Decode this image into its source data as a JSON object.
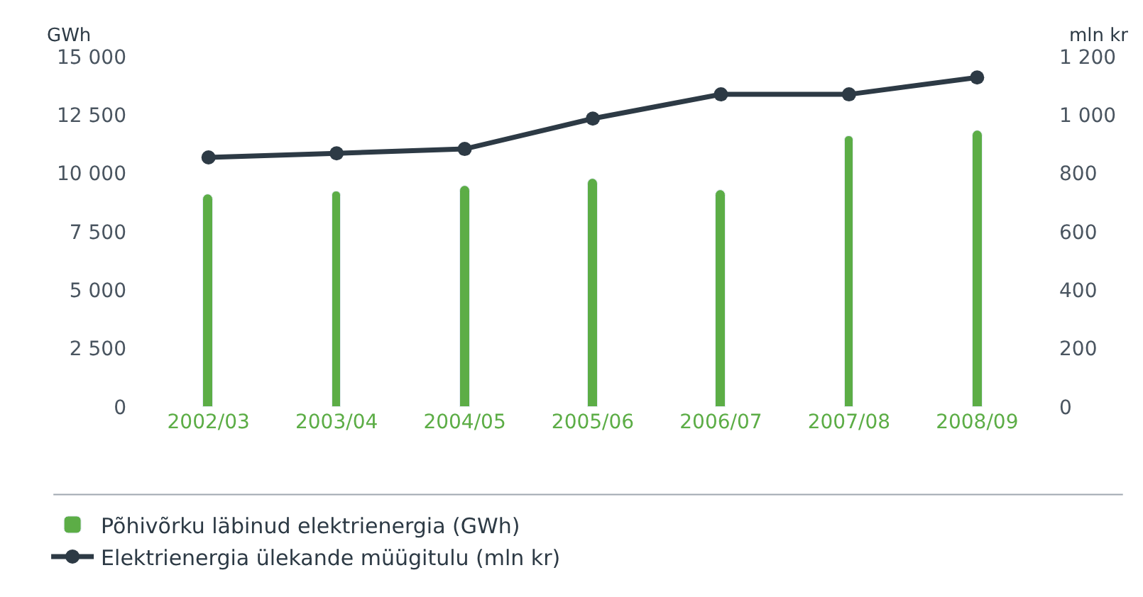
{
  "chart_data": {
    "type": "bar",
    "categories": [
      "2002/03",
      "2003/04",
      "2004/05",
      "2005/06",
      "2006/07",
      "2007/08",
      "2008/09"
    ],
    "ylabel": "GWh",
    "y2label": "mln kr",
    "series": [
      {
        "name": "Põhivõrku läbinud elektrienergia (GWh)",
        "color": "#5cad46",
        "values": [
          9100,
          9250,
          9500,
          9750,
          9300,
          11600,
          11850
        ]
      },
      {
        "name": "Elektrienergia ülekande müügitulu (mln kr)",
        "type": "line",
        "axis": "y2",
        "color": "#2d3a45",
        "marker": "circle",
        "values": [
          855,
          869,
          884,
          988,
          1071,
          1071,
          1129
        ]
      }
    ],
    "ylim": [
      0,
      15000
    ],
    "yticks": [
      {
        "value": 0,
        "label": "0"
      },
      {
        "value": 2500,
        "label": "2 500"
      },
      {
        "value": 5000,
        "label": "5 000"
      },
      {
        "value": 7500,
        "label": "7 500"
      },
      {
        "value": 10000,
        "label": "10 000"
      },
      {
        "value": 12500,
        "label": "12 500"
      },
      {
        "value": 15000,
        "label": "15 000"
      }
    ],
    "y2lim": [
      0,
      1200
    ],
    "y2ticks": [
      {
        "value": 0,
        "label": "0"
      },
      {
        "value": 200,
        "label": "200"
      },
      {
        "value": 400,
        "label": "400"
      },
      {
        "value": 600,
        "label": "600"
      },
      {
        "value": 800,
        "label": "800"
      },
      {
        "value": 1000,
        "label": "1 000"
      },
      {
        "value": 1200,
        "label": "1 200"
      }
    ],
    "legend": "bottom"
  }
}
